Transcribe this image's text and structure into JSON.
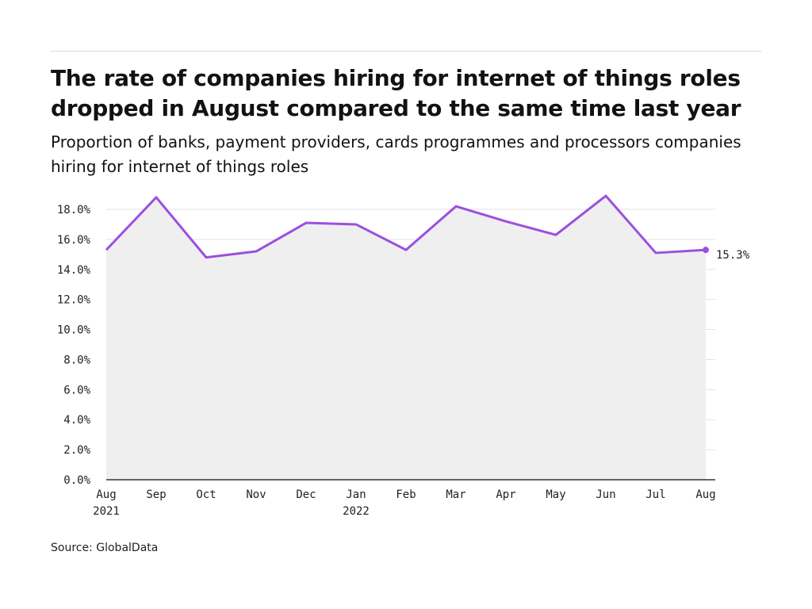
{
  "header": {
    "title": "The rate of companies hiring for internet of things roles dropped in August compared to the same time last year",
    "subtitle": "Proportion of banks, payment providers, cards programmes and processors companies hiring for internet of things roles"
  },
  "footer": {
    "source": "Source: GlobalData"
  },
  "colors": {
    "line": "#9b4fe0",
    "area": "#efefef",
    "grid": "#e2e2e2",
    "axis": "#333333"
  },
  "chart_data": {
    "type": "area",
    "title": "The rate of companies hiring for internet of things roles dropped in August compared to the same time last year",
    "subtitle": "Proportion of banks, payment providers, cards programmes and processors companies hiring for internet of things roles",
    "xlabel": "",
    "ylabel": "",
    "ylim": [
      0,
      18
    ],
    "yticks": [
      0,
      2,
      4,
      6,
      8,
      10,
      12,
      14,
      16,
      18
    ],
    "ytick_labels": [
      "0.0%",
      "2.0%",
      "4.0%",
      "6.0%",
      "8.0%",
      "10.0%",
      "12.0%",
      "14.0%",
      "16.0%",
      "18.0%"
    ],
    "grid": true,
    "categories": [
      "Aug 2021",
      "Sep 2021",
      "Oct 2021",
      "Nov 2021",
      "Dec 2021",
      "Jan 2022",
      "Feb 2022",
      "Mar 2022",
      "Apr 2022",
      "May 2022",
      "Jun 2022",
      "Jul 2022",
      "Aug 2022"
    ],
    "tick_labels": [
      [
        "Aug",
        "2021"
      ],
      [
        "Sep"
      ],
      [
        "Oct"
      ],
      [
        "Nov"
      ],
      [
        "Dec"
      ],
      [
        "Jan",
        "2022"
      ],
      [
        "Feb"
      ],
      [
        "Mar"
      ],
      [
        "Apr"
      ],
      [
        "May"
      ],
      [
        "Jun"
      ],
      [
        "Jul"
      ],
      [
        "Aug"
      ]
    ],
    "series": [
      {
        "values": [
          15.3,
          18.8,
          14.8,
          15.2,
          17.1,
          17.0,
          15.3,
          18.2,
          17.2,
          16.3,
          18.9,
          15.1,
          15.3
        ]
      }
    ],
    "end_label": "15.3%"
  }
}
